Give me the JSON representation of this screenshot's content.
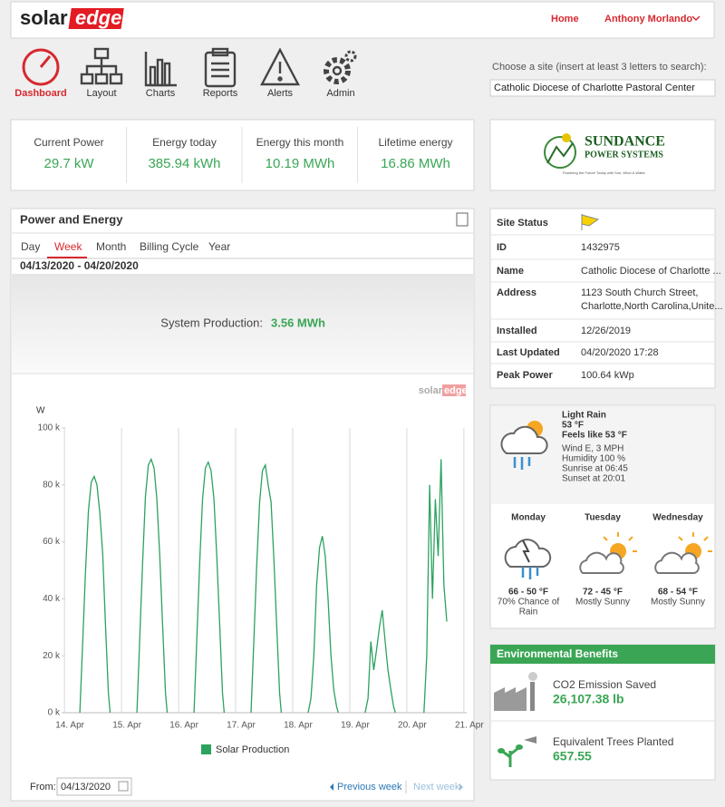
{
  "header": {
    "logo_left": "solar",
    "logo_right": "edge",
    "nav": [
      "Home",
      "Anthony Morlando"
    ]
  },
  "toolbar": {
    "items": [
      "Dashboard",
      "Layout",
      "Charts",
      "Reports",
      "Alerts",
      "Admin"
    ],
    "site_prompt": "Choose a site (insert at least 3 letters to search):",
    "site_value": "Catholic Diocese of Charlotte Pastoral Center"
  },
  "summary": [
    {
      "label": "Current Power",
      "value": "29.7 kW"
    },
    {
      "label": "Energy today",
      "value": "385.94 kWh"
    },
    {
      "label": "Energy this month",
      "value": "10.19 MWh"
    },
    {
      "label": "Lifetime energy",
      "value": "16.86 MWh"
    }
  ],
  "sponsor": {
    "name": "SUNDANCE",
    "sub": "POWER SYSTEMS",
    "tagline": "Powering the Future Today with Sun, Wind & Water"
  },
  "power_energy": {
    "title": "Power and Energy",
    "tabs": [
      "Day",
      "Week",
      "Month",
      "Billing Cycle",
      "Year"
    ],
    "date_range": "04/13/2020 - 04/20/2020",
    "production_label": "System Production:",
    "production_value": "3.56 MWh",
    "watermark_left": "solar",
    "watermark_right": "edge",
    "from_label": "From:",
    "from_value": "04/13/2020",
    "prev": "Previous week",
    "next": "Next week"
  },
  "chart_data": {
    "type": "line",
    "y_label": "W",
    "xlim": [
      -0.05,
      7.05
    ],
    "xticks": [
      {
        "value": 0,
        "label": "14. Apr"
      },
      {
        "value": 1,
        "label": "15. Apr"
      },
      {
        "value": 2,
        "label": "16. Apr"
      },
      {
        "value": 3,
        "label": "17. Apr"
      },
      {
        "value": 4,
        "label": "18. Apr"
      },
      {
        "value": 5,
        "label": "19. Apr"
      },
      {
        "value": 6,
        "label": "20. Apr"
      },
      {
        "value": 7,
        "label": "21. Apr"
      }
    ],
    "ylim": [
      0,
      100000
    ],
    "yticks": [
      {
        "value": 0,
        "label": "0 k"
      },
      {
        "value": 20000,
        "label": "20 k"
      },
      {
        "value": 40000,
        "label": "40 k"
      },
      {
        "value": 60000,
        "label": "60 k"
      },
      {
        "value": 80000,
        "label": "80 k"
      },
      {
        "value": 100000,
        "label": "100 k"
      }
    ],
    "grid": "x",
    "x": [
      0.27,
      0.32,
      0.37,
      0.42,
      0.47,
      0.52,
      0.57,
      0.62,
      0.67,
      0.72,
      0.77,
      0.8,
      0.9,
      1.27,
      1.32,
      1.37,
      1.42,
      1.47,
      1.52,
      1.57,
      1.62,
      1.67,
      1.72,
      1.77,
      1.8,
      1.9,
      2.27,
      2.32,
      2.37,
      2.42,
      2.47,
      2.52,
      2.57,
      2.62,
      2.67,
      2.72,
      2.77,
      2.8,
      2.9,
      3.27,
      3.32,
      3.37,
      3.42,
      3.47,
      3.52,
      3.57,
      3.62,
      3.67,
      3.72,
      3.77,
      3.8,
      3.9,
      4.27,
      4.32,
      4.37,
      4.42,
      4.47,
      4.52,
      4.57,
      4.62,
      4.67,
      4.72,
      4.77,
      4.8,
      4.9,
      5.27,
      5.32,
      5.37,
      5.42,
      5.47,
      5.52,
      5.57,
      5.62,
      5.67,
      5.72,
      5.77,
      5.8,
      5.9,
      6.3,
      6.35,
      6.4,
      6.45,
      6.5,
      6.55,
      6.6,
      6.65,
      6.7
    ],
    "series": [
      {
        "name": "Solar Production",
        "color": "#2ca25f",
        "values": [
          0,
          25000,
          50000,
          71000,
          81000,
          83000,
          80000,
          70000,
          56000,
          30000,
          7000,
          0,
          null,
          0,
          27000,
          53000,
          76000,
          87000,
          89000,
          86000,
          75000,
          55000,
          31000,
          7000,
          0,
          null,
          0,
          26000,
          53000,
          75000,
          86000,
          88000,
          85000,
          75000,
          55000,
          31000,
          7000,
          0,
          null,
          0,
          26000,
          52000,
          74000,
          85000,
          87000,
          80000,
          74000,
          54000,
          30000,
          7000,
          0,
          null,
          0,
          5000,
          20000,
          45000,
          58000,
          62000,
          55000,
          40000,
          20000,
          8000,
          2000,
          0,
          null,
          0,
          5000,
          25000,
          15000,
          22000,
          30000,
          36000,
          25000,
          15000,
          8000,
          2000,
          0,
          null,
          0,
          20000,
          80000,
          40000,
          75000,
          55000,
          89000,
          45000,
          32000
        ]
      }
    ]
  },
  "site_status": {
    "title": "Site Status",
    "rows": [
      {
        "label": "ID",
        "value": [
          "1432975"
        ]
      },
      {
        "label": "Name",
        "value": [
          "Catholic Diocese of Charlotte ..."
        ]
      },
      {
        "label": "Address",
        "value": [
          "1123 South Church Street,",
          "Charlotte,North Carolina,Unite..."
        ]
      },
      {
        "label": "Installed",
        "value": [
          "12/26/2019"
        ]
      },
      {
        "label": "Last Updated",
        "value": [
          "04/20/2020 17:28"
        ]
      },
      {
        "label": "Peak Power",
        "value": [
          "100.64 kWp"
        ]
      }
    ]
  },
  "weather": {
    "current": [
      "Light Rain",
      "53 °F",
      "Feels like 53 °F"
    ],
    "details": [
      "Wind E, 3 MPH",
      "Humidity 100 %",
      "Sunrise at 06:45",
      "Sunset at 20:01"
    ],
    "forecast": [
      {
        "day": "Monday",
        "temp": "66 - 50 °F",
        "desc": [
          "70% Chance of",
          "Rain"
        ]
      },
      {
        "day": "Tuesday",
        "temp": "72 - 45 °F",
        "desc": [
          "Mostly Sunny"
        ]
      },
      {
        "day": "Wednesday",
        "temp": "68 - 54 °F",
        "desc": [
          "Mostly Sunny"
        ]
      }
    ]
  },
  "environment": {
    "title": "Environmental Benefits",
    "items": [
      {
        "label": "CO2 Emission Saved",
        "value": "26,107.38 lb"
      },
      {
        "label": "Equivalent Trees Planted",
        "value": "657.55"
      }
    ]
  }
}
